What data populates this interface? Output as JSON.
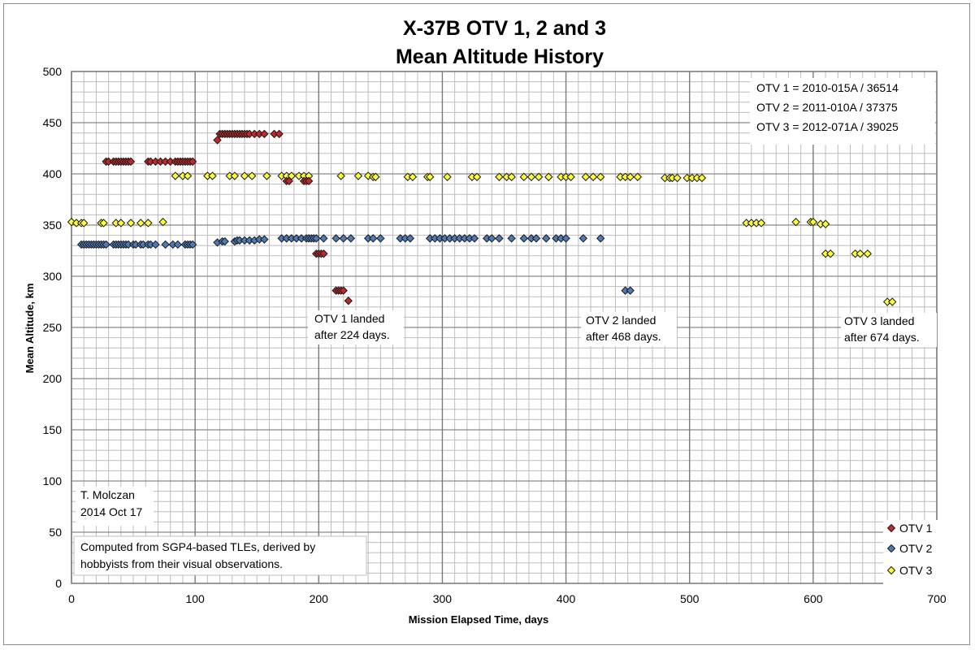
{
  "chart_data": {
    "type": "scatter",
    "title_lines": [
      "X-37B OTV 1, 2 and 3",
      "Mean Altitude History"
    ],
    "xlabel": "Mission Elapsed Time, days",
    "ylabel": "Mean Altitude, km",
    "xlim": [
      0,
      700
    ],
    "ylim": [
      0,
      500
    ],
    "xticks": [
      0,
      100,
      200,
      300,
      400,
      500,
      600,
      700
    ],
    "yticks": [
      0,
      50,
      100,
      150,
      200,
      250,
      300,
      350,
      400,
      450,
      500
    ],
    "grid": true,
    "legend_position": "bottom-right",
    "colors": {
      "OTV 1": "#c0282d",
      "OTV 2": "#4f7ab8",
      "OTV 3": "#ffff33"
    },
    "series": [
      {
        "name": "OTV 1",
        "points": [
          [
            28,
            412
          ],
          [
            30,
            412
          ],
          [
            34,
            412
          ],
          [
            36,
            412
          ],
          [
            38,
            412
          ],
          [
            40,
            412
          ],
          [
            42,
            412
          ],
          [
            44,
            412
          ],
          [
            46,
            412
          ],
          [
            48,
            412
          ],
          [
            62,
            412
          ],
          [
            64,
            412
          ],
          [
            68,
            412
          ],
          [
            72,
            412
          ],
          [
            76,
            412
          ],
          [
            80,
            412
          ],
          [
            84,
            412
          ],
          [
            86,
            412
          ],
          [
            88,
            412
          ],
          [
            90,
            412
          ],
          [
            92,
            412
          ],
          [
            94,
            412
          ],
          [
            96,
            412
          ],
          [
            98,
            412
          ],
          [
            118,
            433
          ],
          [
            120,
            439
          ],
          [
            122,
            439
          ],
          [
            124,
            439
          ],
          [
            126,
            439
          ],
          [
            128,
            439
          ],
          [
            130,
            439
          ],
          [
            132,
            439
          ],
          [
            134,
            439
          ],
          [
            136,
            439
          ],
          [
            138,
            439
          ],
          [
            140,
            439
          ],
          [
            142,
            439
          ],
          [
            144,
            439
          ],
          [
            148,
            439
          ],
          [
            152,
            439
          ],
          [
            156,
            439
          ],
          [
            164,
            439
          ],
          [
            168,
            439
          ],
          [
            174,
            393
          ],
          [
            176,
            393
          ],
          [
            188,
            393
          ],
          [
            190,
            393
          ],
          [
            192,
            393
          ],
          [
            198,
            322
          ],
          [
            200,
            322
          ],
          [
            202,
            322
          ],
          [
            204,
            322
          ],
          [
            214,
            286
          ],
          [
            216,
            286
          ],
          [
            218,
            286
          ],
          [
            220,
            286
          ],
          [
            224,
            276
          ]
        ]
      },
      {
        "name": "OTV 2",
        "points": [
          [
            8,
            331
          ],
          [
            10,
            331
          ],
          [
            12,
            331
          ],
          [
            14,
            331
          ],
          [
            16,
            331
          ],
          [
            18,
            331
          ],
          [
            20,
            331
          ],
          [
            22,
            331
          ],
          [
            24,
            331
          ],
          [
            26,
            331
          ],
          [
            28,
            331
          ],
          [
            34,
            331
          ],
          [
            36,
            331
          ],
          [
            38,
            331
          ],
          [
            40,
            331
          ],
          [
            42,
            331
          ],
          [
            44,
            331
          ],
          [
            46,
            331
          ],
          [
            50,
            331
          ],
          [
            52,
            331
          ],
          [
            56,
            331
          ],
          [
            58,
            331
          ],
          [
            62,
            331
          ],
          [
            64,
            331
          ],
          [
            68,
            331
          ],
          [
            76,
            331
          ],
          [
            82,
            331
          ],
          [
            86,
            331
          ],
          [
            92,
            331
          ],
          [
            94,
            331
          ],
          [
            96,
            331
          ],
          [
            98,
            331
          ],
          [
            118,
            333
          ],
          [
            122,
            334
          ],
          [
            124,
            334
          ],
          [
            132,
            334
          ],
          [
            134,
            335
          ],
          [
            136,
            335
          ],
          [
            140,
            335
          ],
          [
            144,
            335
          ],
          [
            148,
            335
          ],
          [
            152,
            336
          ],
          [
            156,
            336
          ],
          [
            170,
            337
          ],
          [
            174,
            337
          ],
          [
            178,
            337
          ],
          [
            182,
            337
          ],
          [
            186,
            337
          ],
          [
            190,
            337
          ],
          [
            192,
            337
          ],
          [
            194,
            337
          ],
          [
            196,
            337
          ],
          [
            198,
            337
          ],
          [
            204,
            337
          ],
          [
            214,
            337
          ],
          [
            220,
            337
          ],
          [
            226,
            337
          ],
          [
            240,
            337
          ],
          [
            244,
            337
          ],
          [
            250,
            337
          ],
          [
            266,
            337
          ],
          [
            270,
            337
          ],
          [
            274,
            337
          ],
          [
            290,
            337
          ],
          [
            294,
            337
          ],
          [
            298,
            337
          ],
          [
            302,
            337
          ],
          [
            306,
            337
          ],
          [
            310,
            337
          ],
          [
            314,
            337
          ],
          [
            318,
            337
          ],
          [
            322,
            337
          ],
          [
            326,
            337
          ],
          [
            336,
            337
          ],
          [
            340,
            337
          ],
          [
            346,
            337
          ],
          [
            356,
            337
          ],
          [
            366,
            337
          ],
          [
            372,
            337
          ],
          [
            376,
            337
          ],
          [
            384,
            337
          ],
          [
            392,
            337
          ],
          [
            396,
            337
          ],
          [
            400,
            337
          ],
          [
            414,
            337
          ],
          [
            428,
            337
          ],
          [
            448,
            286
          ],
          [
            452,
            286
          ]
        ]
      },
      {
        "name": "OTV 3",
        "points": [
          [
            0,
            353
          ],
          [
            4,
            352
          ],
          [
            8,
            352
          ],
          [
            10,
            352
          ],
          [
            24,
            352
          ],
          [
            26,
            352
          ],
          [
            36,
            352
          ],
          [
            40,
            352
          ],
          [
            48,
            352
          ],
          [
            56,
            352
          ],
          [
            62,
            352
          ],
          [
            74,
            353
          ],
          [
            84,
            398
          ],
          [
            90,
            398
          ],
          [
            94,
            398
          ],
          [
            110,
            398
          ],
          [
            114,
            398
          ],
          [
            128,
            398
          ],
          [
            132,
            398
          ],
          [
            140,
            398
          ],
          [
            146,
            398
          ],
          [
            158,
            398
          ],
          [
            170,
            398
          ],
          [
            174,
            398
          ],
          [
            178,
            398
          ],
          [
            184,
            398
          ],
          [
            188,
            398
          ],
          [
            192,
            398
          ],
          [
            218,
            398
          ],
          [
            232,
            398
          ],
          [
            240,
            398
          ],
          [
            244,
            397
          ],
          [
            246,
            397
          ],
          [
            272,
            397
          ],
          [
            276,
            397
          ],
          [
            288,
            397
          ],
          [
            290,
            397
          ],
          [
            304,
            397
          ],
          [
            324,
            397
          ],
          [
            328,
            397
          ],
          [
            346,
            397
          ],
          [
            352,
            397
          ],
          [
            356,
            397
          ],
          [
            366,
            397
          ],
          [
            372,
            397
          ],
          [
            378,
            397
          ],
          [
            386,
            397
          ],
          [
            396,
            397
          ],
          [
            400,
            397
          ],
          [
            404,
            397
          ],
          [
            416,
            397
          ],
          [
            422,
            397
          ],
          [
            428,
            397
          ],
          [
            444,
            397
          ],
          [
            448,
            397
          ],
          [
            452,
            397
          ],
          [
            458,
            397
          ],
          [
            480,
            396
          ],
          [
            484,
            396
          ],
          [
            486,
            396
          ],
          [
            490,
            396
          ],
          [
            498,
            396
          ],
          [
            502,
            396
          ],
          [
            506,
            396
          ],
          [
            510,
            396
          ],
          [
            546,
            352
          ],
          [
            550,
            352
          ],
          [
            554,
            352
          ],
          [
            558,
            352
          ],
          [
            586,
            353
          ],
          [
            598,
            353
          ],
          [
            600,
            353
          ],
          [
            606,
            351
          ],
          [
            610,
            351
          ],
          [
            610,
            322
          ],
          [
            614,
            322
          ],
          [
            634,
            322
          ],
          [
            638,
            322
          ],
          [
            644,
            322
          ],
          [
            660,
            275
          ],
          [
            664,
            275
          ]
        ]
      }
    ],
    "legend": [
      "OTV 1",
      "OTV 2",
      "OTV 3"
    ],
    "annotations": {
      "id_lines": [
        "OTV 1 = 2010-015A / 36514",
        "OTV 2 = 2011-010A / 37375",
        "OTV 3 = 2012-071A / 39025"
      ],
      "otv1_landed": [
        "OTV 1 landed",
        "after 224 days."
      ],
      "otv2_landed": [
        "OTV 2 landed",
        "after 468 days."
      ],
      "otv3_landed": [
        "OTV 3 landed",
        "after 674 days."
      ],
      "author": [
        "T. Molczan",
        "2014 Oct 17"
      ],
      "source": [
        "Computed from SGP4-based TLEs, derived by",
        "hobbyists from their visual observations."
      ]
    }
  }
}
